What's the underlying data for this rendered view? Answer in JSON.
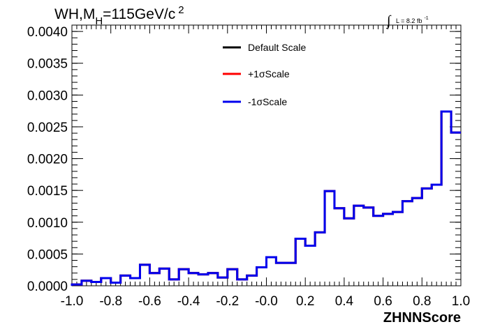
{
  "chart_data": {
    "type": "line",
    "title_main": "WH,M",
    "title_sub": "H",
    "title_rest": "=115GeV/c",
    "title_sup": "2",
    "lumi_integral": "∫",
    "lumi_text": "L = 8.2 fb",
    "lumi_sup": "-1",
    "xlabel": "ZHNNScore",
    "ylabel": "",
    "xlim": [
      -1.0,
      1.0
    ],
    "ylim": [
      0.0,
      0.0041
    ],
    "x_ticks": [
      "-1.0",
      "-0.8",
      "-0.6",
      "-0.4",
      "-0.2",
      "-0.0",
      "0.2",
      "0.4",
      "0.6",
      "0.8",
      "1.0"
    ],
    "x_tick_values": [
      -1.0,
      -0.8,
      -0.6,
      -0.4,
      -0.2,
      0.0,
      0.2,
      0.4,
      0.6,
      0.8,
      1.0
    ],
    "y_ticks": [
      "0.0000",
      "0.0005",
      "0.0010",
      "0.0015",
      "0.0020",
      "0.0025",
      "0.0030",
      "0.0035",
      "0.0040"
    ],
    "y_tick_values": [
      0.0,
      0.0005,
      0.001,
      0.0015,
      0.002,
      0.0025,
      0.003,
      0.0035,
      0.004
    ],
    "legend_position": "top-center",
    "bin_edges": [
      -1.0,
      -0.95,
      -0.9,
      -0.85,
      -0.8,
      -0.75,
      -0.7,
      -0.65,
      -0.6,
      -0.55,
      -0.5,
      -0.45,
      -0.4,
      -0.35,
      -0.3,
      -0.25,
      -0.2,
      -0.15,
      -0.1,
      -0.05,
      0.0,
      0.05,
      0.1,
      0.15,
      0.2,
      0.25,
      0.3,
      0.35,
      0.4,
      0.45,
      0.5,
      0.55,
      0.6,
      0.65,
      0.7,
      0.75,
      0.8,
      0.85,
      0.9,
      0.95,
      1.0
    ],
    "series": [
      {
        "name": "Default Scale",
        "color": "#000000",
        "values": [
          2e-05,
          8e-05,
          6e-05,
          0.00012,
          5e-05,
          0.00016,
          0.00012,
          0.00033,
          0.0002,
          0.00027,
          0.0001,
          0.00026,
          0.0002,
          0.00018,
          0.0002,
          0.00013,
          0.00026,
          0.0001,
          0.00016,
          0.00029,
          0.00045,
          0.00036,
          0.00036,
          0.00074,
          0.00063,
          0.00084,
          0.00149,
          0.00122,
          0.00106,
          0.00126,
          0.00123,
          0.0011,
          0.00113,
          0.00116,
          0.00133,
          0.00138,
          0.00153,
          0.00159,
          0.00274,
          0.00241
        ]
      },
      {
        "name": "+1σScale",
        "color": "#ff0000",
        "values": [
          2e-05,
          8e-05,
          6e-05,
          0.00012,
          5e-05,
          0.00016,
          0.00012,
          0.00033,
          0.0002,
          0.00027,
          0.0001,
          0.00026,
          0.0002,
          0.00018,
          0.0002,
          0.00013,
          0.00026,
          0.0001,
          0.00016,
          0.00029,
          0.00045,
          0.00036,
          0.00036,
          0.00074,
          0.00063,
          0.00084,
          0.00149,
          0.00122,
          0.00106,
          0.00126,
          0.00123,
          0.0011,
          0.00113,
          0.00116,
          0.00133,
          0.00138,
          0.00153,
          0.00159,
          0.00274,
          0.00241
        ]
      },
      {
        "name": "-1σScale",
        "color": "#0000ee",
        "values": [
          2e-05,
          8e-05,
          6e-05,
          0.00012,
          5e-05,
          0.00016,
          0.00012,
          0.00033,
          0.0002,
          0.00027,
          0.0001,
          0.00026,
          0.0002,
          0.00018,
          0.0002,
          0.00013,
          0.00026,
          0.0001,
          0.00016,
          0.00029,
          0.00045,
          0.00036,
          0.00036,
          0.00074,
          0.00063,
          0.00084,
          0.00149,
          0.00122,
          0.00106,
          0.00126,
          0.00123,
          0.0011,
          0.00113,
          0.00116,
          0.00133,
          0.00138,
          0.00153,
          0.00159,
          0.00274,
          0.00241
        ]
      }
    ]
  }
}
